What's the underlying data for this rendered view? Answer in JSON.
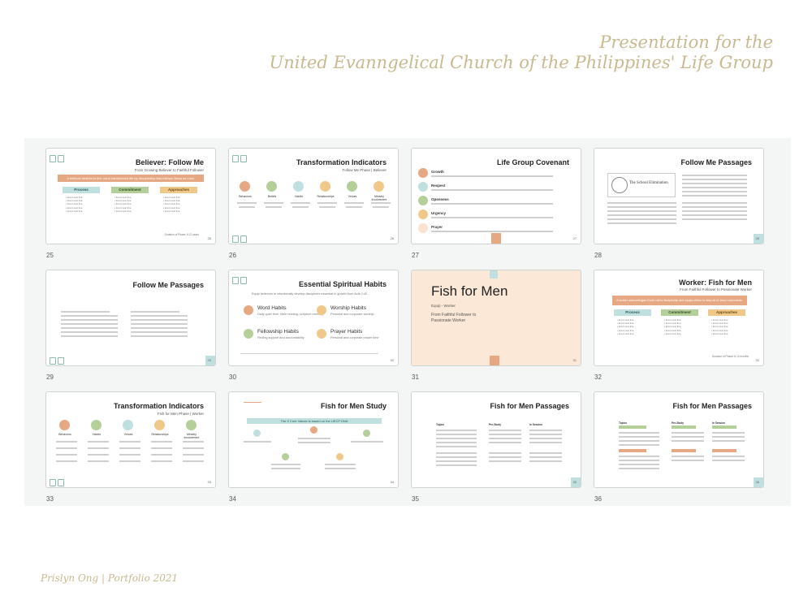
{
  "header": {
    "line1": "Presentation for the",
    "line2": "United Evanngelical Church of the Philippines' Life Group"
  },
  "footer": {
    "credit": "Prislyn Ong | Portfolio 2021"
  },
  "colors": {
    "accent_orange": "#e6a883",
    "accent_green": "#b5cf9b",
    "accent_teal": "#bfe0df",
    "accent_yellow": "#f0c98a",
    "header_text": "#c9b98f"
  },
  "slides": [
    {
      "number": "25",
      "title": "Believer: Follow Me",
      "subtitle": "From Growing Believer to Faithful Follower",
      "banner": "A believer desires to live out a transformed life by discipleship that follows Jesus as Lord.",
      "columns": [
        "Process",
        "Commitment",
        "Approaches"
      ],
      "page": "25",
      "caption": "Duration of Phase: 6-12 years"
    },
    {
      "number": "26",
      "title": "Transformation Indicators",
      "subtitle": "Follow Me Phase | Believer",
      "items": [
        "Behaviors",
        "Beliefs",
        "Habits",
        "Relationships",
        "Virtues",
        "Ministry involvement"
      ],
      "page": "26"
    },
    {
      "number": "27",
      "title": "Life Group Covenant",
      "items": [
        "Growth",
        "Respect",
        "Openness",
        "Urgency",
        "Prayer"
      ],
      "page": "27"
    },
    {
      "number": "28",
      "title": "Follow Me Passages",
      "book": "The School Elimination",
      "page": "28"
    },
    {
      "number": "29",
      "title": "Follow Me Passages",
      "page": "29"
    },
    {
      "number": "30",
      "title": "Essential Spiritual Habits",
      "intro": "Equip believers to intentionally develop disciplines essential in growth from Acts 2:42",
      "habits": [
        {
          "name": "Word Habits",
          "desc": "Daily quiet time, bible reading, scripture memory"
        },
        {
          "name": "Worship Habits",
          "desc": "Personal and corporate worship"
        },
        {
          "name": "Fellowship Habits",
          "desc": "Finding support and accountability"
        },
        {
          "name": "Prayer Habits",
          "desc": "Personal and corporate prayer time"
        }
      ],
      "page": "30"
    },
    {
      "number": "31",
      "title": "Fish for Men",
      "subtitle": "Equip - Worker",
      "desc": "From Faithful Follower to Passionate Worker",
      "page": "31"
    },
    {
      "number": "32",
      "title": "Worker: Fish for Men",
      "subtitle": "From Faithful Follower to Passionate Worker",
      "banner": "A worker acknowledges God's call to discipleship and equips others to obey all of Jesus' commands.",
      "columns": [
        "Process",
        "Commitment",
        "Approaches"
      ],
      "page": "32",
      "caption": "Duration of Phase: 8-12 months"
    },
    {
      "number": "33",
      "title": "Transformation Indicators",
      "subtitle": "Fish for Men Phase | Worker",
      "items": [
        "Behaviors",
        "Habits",
        "Virtues",
        "Relationships",
        "Ministry involvement"
      ],
      "page": "33"
    },
    {
      "number": "34",
      "title": "Fish for Men Study",
      "banner": "The 5 Core Values is based on the UECP DNA",
      "page": "34"
    },
    {
      "number": "35",
      "title": "Fish for Men Passages",
      "columns": [
        "Topics",
        "Pre-Study",
        "In Session"
      ],
      "page": "35"
    },
    {
      "number": "36",
      "title": "Fish for Men Passages",
      "columns": [
        "Topics",
        "Pre-Study",
        "In Session"
      ],
      "page": "36"
    }
  ]
}
